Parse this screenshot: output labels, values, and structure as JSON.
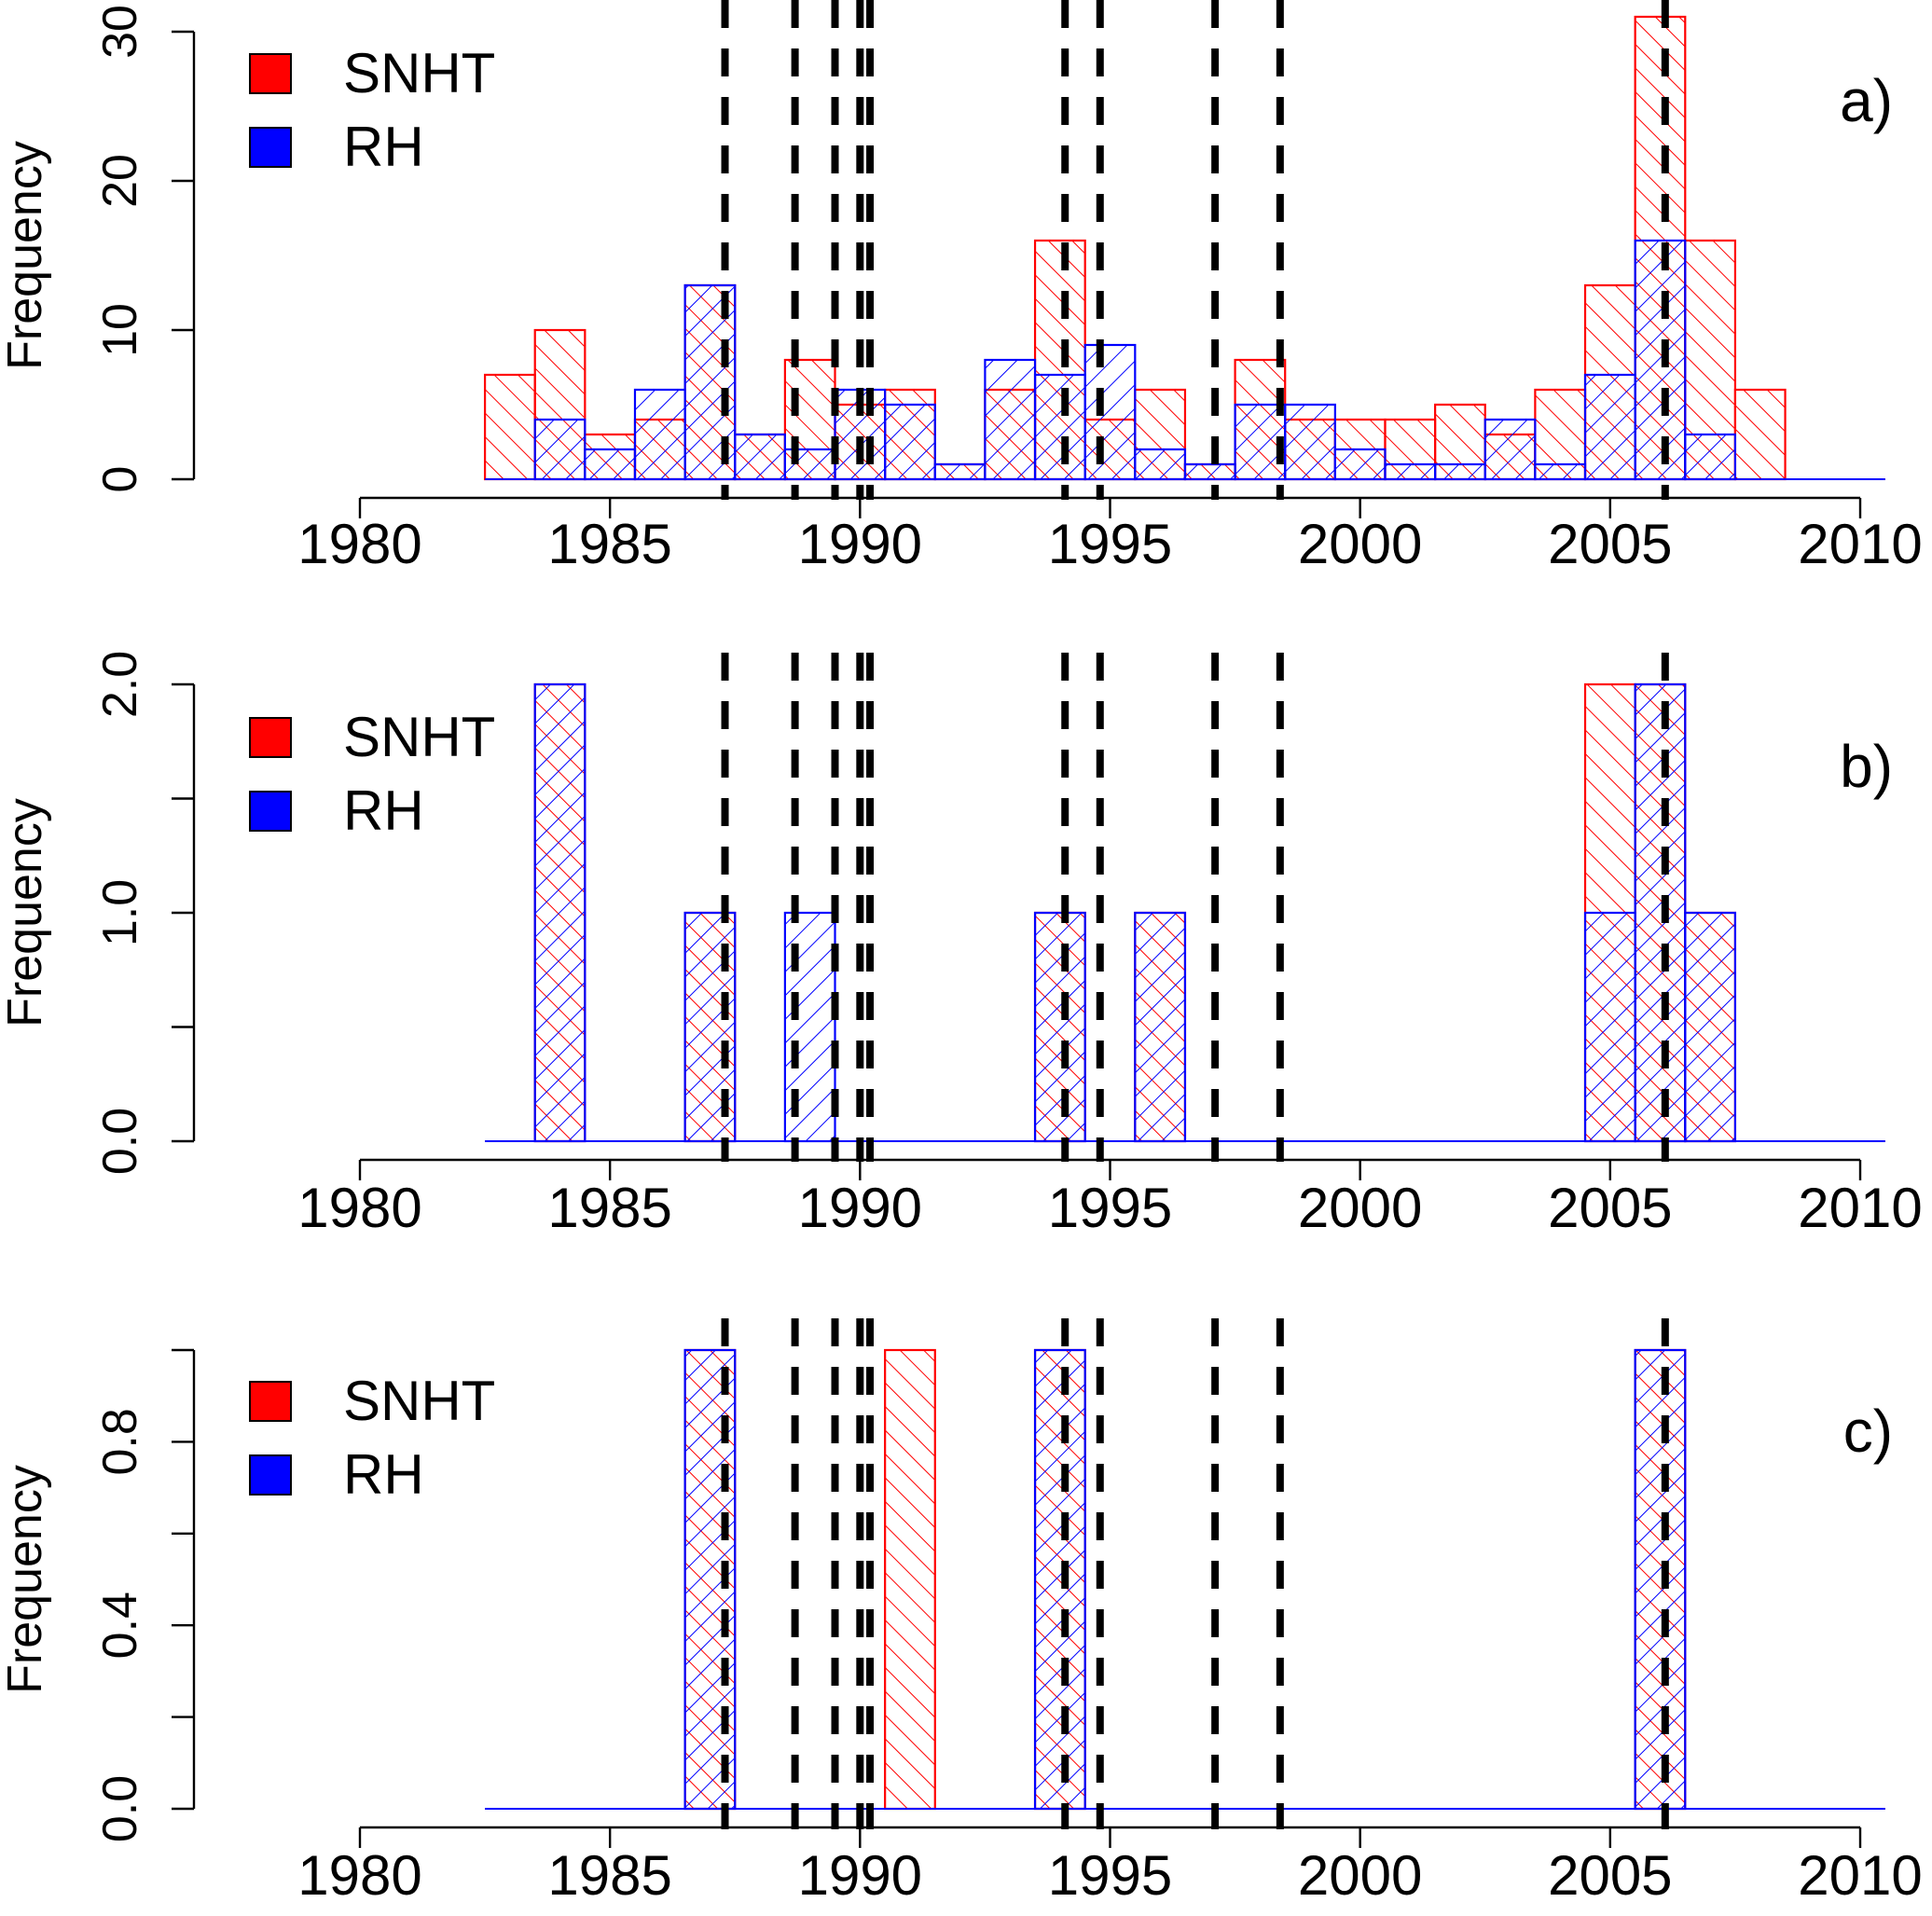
{
  "figure_title": "",
  "colors": {
    "snht": "#ff0000",
    "rh": "#0000ff",
    "breaks": "#000000",
    "axis": "#000000",
    "background": "#ffffff"
  },
  "legend_swatches": [
    "snht-swatch",
    "rh-swatch"
  ],
  "break_years": [
    1987.3,
    1988.7,
    1989.5,
    1990.0,
    1990.2,
    1994.1,
    1994.8,
    1997.1,
    1998.4,
    2006.1
  ],
  "chart_data": [
    {
      "type": "bar",
      "panel_label": "a)",
      "ylabel": "Frequency",
      "xlabel": "",
      "xlim": [
        1980,
        2010
      ],
      "ylim": [
        0,
        30
      ],
      "xticks": [
        1980,
        1985,
        1990,
        1995,
        2000,
        2005,
        2010
      ],
      "yticks": [
        0,
        10,
        20,
        30
      ],
      "ytick_labels": [
        "0",
        "10",
        "20",
        "30"
      ],
      "bin_start": 1982.5,
      "bin_width": 1,
      "legend": [
        "SNHT",
        "RH"
      ],
      "series": [
        {
          "name": "SNHT",
          "values": [
            7,
            10,
            3,
            4,
            13,
            3,
            8,
            5,
            6,
            1,
            6,
            16,
            4,
            6,
            1,
            8,
            4,
            4,
            4,
            5,
            3,
            6,
            13,
            31,
            16,
            6,
            0,
            0
          ]
        },
        {
          "name": "RH",
          "values": [
            0,
            4,
            2,
            6,
            13,
            3,
            2,
            6,
            5,
            1,
            8,
            7,
            9,
            2,
            1,
            5,
            5,
            2,
            1,
            1,
            4,
            1,
            7,
            16,
            3,
            0,
            0,
            0
          ]
        }
      ]
    },
    {
      "type": "bar",
      "panel_label": "b)",
      "ylabel": "Frequency",
      "xlabel": "",
      "xlim": [
        1980,
        2010
      ],
      "ylim": [
        0,
        2
      ],
      "xticks": [
        1980,
        1985,
        1990,
        1995,
        2000,
        2005,
        2010
      ],
      "yticks": [
        0,
        0.5,
        1,
        1.5,
        2
      ],
      "ytick_labels": [
        "0.0",
        "",
        "1.0",
        "",
        "2.0"
      ],
      "bin_start": 1982.5,
      "bin_width": 1,
      "legend": [
        "SNHT",
        "RH"
      ],
      "series": [
        {
          "name": "SNHT",
          "values": [
            0,
            2,
            0,
            0,
            1,
            0,
            0,
            0,
            0,
            0,
            0,
            1,
            0,
            1,
            0,
            0,
            0,
            0,
            0,
            0,
            0,
            0,
            2,
            2,
            1,
            0,
            0,
            0
          ]
        },
        {
          "name": "RH",
          "values": [
            0,
            2,
            0,
            0,
            1,
            0,
            1,
            0,
            0,
            0,
            0,
            1,
            0,
            1,
            0,
            0,
            0,
            0,
            0,
            0,
            0,
            0,
            1,
            2,
            1,
            0,
            0,
            0
          ]
        }
      ]
    },
    {
      "type": "bar",
      "panel_label": "c)",
      "ylabel": "Frequency",
      "xlabel": "",
      "xlim": [
        1980,
        2010
      ],
      "ylim": [
        0,
        1
      ],
      "xticks": [
        1980,
        1985,
        1990,
        1995,
        2000,
        2005,
        2010
      ],
      "yticks": [
        0,
        0.2,
        0.4,
        0.6,
        0.8,
        1.0
      ],
      "ytick_labels": [
        "0.0",
        "",
        "0.4",
        "",
        "0.8",
        ""
      ],
      "bin_start": 1982.5,
      "bin_width": 1,
      "legend": [
        "SNHT",
        "RH"
      ],
      "series": [
        {
          "name": "SNHT",
          "values": [
            0,
            0,
            0,
            0,
            1,
            0,
            0,
            0,
            1,
            0,
            0,
            1,
            0,
            0,
            0,
            0,
            0,
            0,
            0,
            0,
            0,
            0,
            0,
            1,
            0,
            0,
            0,
            0
          ]
        },
        {
          "name": "RH",
          "values": [
            0,
            0,
            0,
            0,
            1,
            0,
            0,
            0,
            0,
            0,
            0,
            1,
            0,
            0,
            0,
            0,
            0,
            0,
            0,
            0,
            0,
            0,
            0,
            1,
            0,
            0,
            0,
            0
          ]
        }
      ]
    }
  ]
}
